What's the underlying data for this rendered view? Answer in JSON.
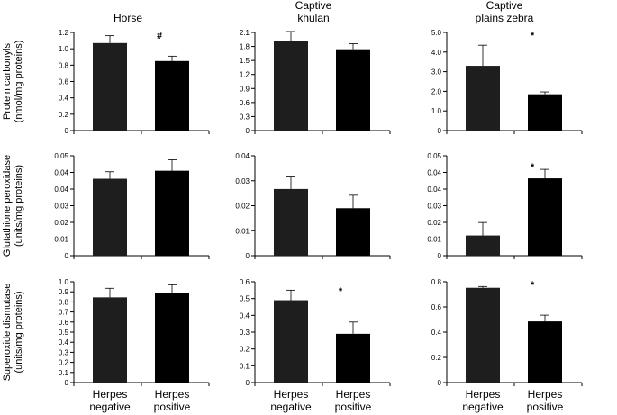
{
  "chart_data": {
    "type": "bar",
    "categories": [
      "Herpes negative",
      "Herpes positive"
    ],
    "bar_colors": [
      "#1e1e1e",
      "#000000"
    ],
    "columns": [
      {
        "title_lines": [
          "Horse"
        ]
      },
      {
        "title_lines": [
          "Captive",
          "khulan"
        ]
      },
      {
        "title_lines": [
          "Captive",
          "plains zebra"
        ]
      }
    ],
    "rows": [
      {
        "ylabel_lines": [
          "Protein carbonyls",
          "(nmol/mg proteins)"
        ]
      },
      {
        "ylabel_lines": [
          "Glutathione peroxidase",
          "(units/mg proteins)"
        ]
      },
      {
        "ylabel_lines": [
          "Superoxide dismutase",
          "(units/mg proteins)"
        ]
      }
    ],
    "panels": [
      {
        "row": 0,
        "col": 0,
        "ylim": [
          0,
          1.2
        ],
        "ticks": [
          "0",
          "0.2",
          "0.4",
          "0.6",
          "0.8",
          "1.0",
          "1.2"
        ],
        "values": [
          1.07,
          0.85
        ],
        "errors": [
          0.09,
          0.06
        ],
        "annotation": "#"
      },
      {
        "row": 0,
        "col": 1,
        "ylim": [
          0,
          2.1
        ],
        "ticks": [
          "0",
          "0.3",
          "0.6",
          "0.9",
          "1.2",
          "1.5",
          "1.8",
          "2.1"
        ],
        "values": [
          1.92,
          1.74
        ],
        "errors": [
          0.2,
          0.12
        ],
        "annotation": ""
      },
      {
        "row": 0,
        "col": 2,
        "ylim": [
          0,
          5.0
        ],
        "ticks": [
          "0",
          "1.0",
          "2.0",
          "3.0",
          "4.0",
          "5.0"
        ],
        "values": [
          3.3,
          1.85
        ],
        "errors": [
          1.05,
          0.12
        ],
        "annotation": "*"
      },
      {
        "row": 1,
        "col": 0,
        "ylim": [
          0,
          0.05
        ],
        "ticks": [
          "0",
          "0.01",
          "0.02",
          "0.03",
          "0.04",
          "0.04",
          "0.05"
        ],
        "values": [
          0.0385,
          0.0425
        ],
        "errors": [
          0.0035,
          0.0055
        ],
        "annotation": ""
      },
      {
        "row": 1,
        "col": 1,
        "ylim": [
          0,
          0.04
        ],
        "ticks": [
          "0",
          "0.01",
          "0.02",
          "0.03",
          "0.04"
        ],
        "values": [
          0.0267,
          0.019
        ],
        "errors": [
          0.0048,
          0.0052
        ],
        "annotation": ""
      },
      {
        "row": 1,
        "col": 2,
        "ylim": [
          0,
          0.05
        ],
        "ticks": [
          "0",
          "0.01",
          "0.02",
          "0.03",
          "0.04",
          "0.04",
          "0.05"
        ],
        "values": [
          0.0101,
          0.0387
        ],
        "errors": [
          0.0065,
          0.0045
        ],
        "annotation": "*"
      },
      {
        "row": 2,
        "col": 0,
        "ylim": [
          0,
          1.0
        ],
        "ticks": [
          "0",
          "0.1",
          "0.2",
          "0.3",
          "0.4",
          "0.5",
          "0.6",
          "0.7",
          "0.8",
          "0.9",
          "1.0"
        ],
        "values": [
          0.845,
          0.89
        ],
        "errors": [
          0.09,
          0.08
        ],
        "annotation": ""
      },
      {
        "row": 2,
        "col": 1,
        "ylim": [
          0,
          0.6
        ],
        "ticks": [
          "0",
          "0.1",
          "0.2",
          "0.3",
          "0.4",
          "0.5",
          "0.6"
        ],
        "values": [
          0.49,
          0.29
        ],
        "errors": [
          0.06,
          0.07
        ],
        "annotation": "*"
      },
      {
        "row": 2,
        "col": 2,
        "ylim": [
          0,
          0.8
        ],
        "ticks": [
          "0",
          "0.2",
          "0.4",
          "0.6",
          "0.8"
        ],
        "values": [
          0.752,
          0.485
        ],
        "errors": [
          0.01,
          0.05
        ],
        "annotation": "*"
      }
    ],
    "x_tick_labels": [
      [
        "Herpes",
        "negative"
      ],
      [
        "Herpes",
        "positive"
      ]
    ]
  }
}
